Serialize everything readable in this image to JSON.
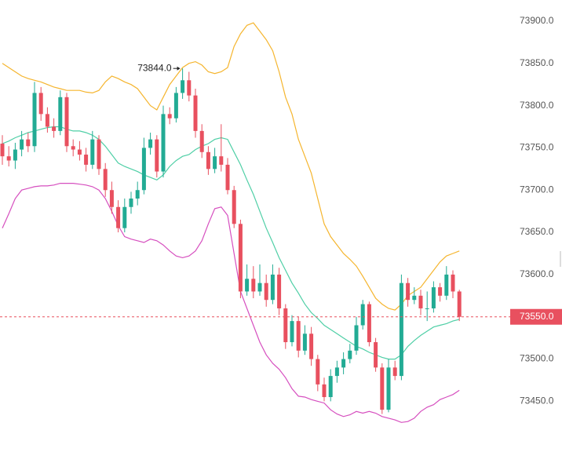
{
  "chart_data": {
    "type": "candlestick",
    "ylim": [
      73390,
      73925
    ],
    "yticks": [
      {
        "value": 73450,
        "label": "73450.0"
      },
      {
        "value": 73500,
        "label": "73500.0"
      },
      {
        "value": 73550,
        "label": "73550.0"
      },
      {
        "value": 73600,
        "label": "73600.0"
      },
      {
        "value": 73650,
        "label": "73650.0"
      },
      {
        "value": 73700,
        "label": "73700.0"
      },
      {
        "value": 73750,
        "label": "73750.0"
      },
      {
        "value": 73800,
        "label": "73800.0"
      },
      {
        "value": 73850,
        "label": "73850.0"
      },
      {
        "value": 73900,
        "label": "73900.0"
      }
    ],
    "up_color": "#22ab94",
    "down_color": "#e8505f",
    "open": [
      73755,
      73740,
      73735,
      73748,
      73760,
      73752,
      73815,
      73790,
      73775,
      73770,
      73810,
      73752,
      73748,
      73742,
      73730,
      73760,
      73725,
      73700,
      73680,
      73655,
      73680,
      73690,
      73700,
      73750,
      73760,
      73722,
      73790,
      73785,
      73815,
      73830,
      73812,
      73770,
      73745,
      73725,
      73740,
      73730,
      73700,
      73660,
      73580,
      73595,
      73580,
      73590,
      73570,
      73600,
      73560,
      73520,
      73545,
      73510,
      73530,
      73500,
      73470,
      73455,
      73480,
      73490,
      73500,
      73510,
      73540,
      73565,
      73520,
      73490,
      73440,
      73490,
      73480,
      73590,
      73570,
      73575,
      73560,
      73560,
      73585,
      73575,
      73600,
      73580
    ],
    "high": [
      73765,
      73752,
      73756,
      73770,
      73768,
      73828,
      73822,
      73798,
      73785,
      73818,
      73815,
      73760,
      73758,
      73750,
      73770,
      73765,
      73732,
      73710,
      73688,
      73690,
      73698,
      73710,
      73762,
      73768,
      73765,
      73800,
      73798,
      73822,
      73844,
      73840,
      73820,
      73778,
      73752,
      73750,
      73778,
      73738,
      73705,
      73665,
      73612,
      73610,
      73612,
      73600,
      73612,
      73608,
      73565,
      73552,
      73550,
      73540,
      73538,
      73505,
      73478,
      73488,
      73498,
      73508,
      73518,
      73550,
      73570,
      73568,
      73525,
      73495,
      73500,
      73498,
      73600,
      73596,
      73585,
      73582,
      73580,
      73592,
      73590,
      73610,
      73605,
      73582
    ],
    "low": [
      73730,
      73728,
      73725,
      73740,
      73745,
      73745,
      73782,
      73768,
      73762,
      73765,
      73745,
      73740,
      73735,
      73722,
      73725,
      73718,
      73692,
      73672,
      73650,
      73650,
      73672,
      73682,
      73695,
      73742,
      73715,
      73715,
      73778,
      73780,
      73808,
      73805,
      73762,
      73738,
      73718,
      73720,
      73722,
      73695,
      73655,
      73572,
      73575,
      73572,
      73575,
      73562,
      73565,
      73552,
      73512,
      73515,
      73502,
      73505,
      73492,
      73462,
      73450,
      73450,
      73472,
      73482,
      73495,
      73505,
      73535,
      73515,
      73485,
      73435,
      73437,
      73475,
      73475,
      73562,
      73565,
      73552,
      73545,
      73555,
      73568,
      73570,
      73572,
      73545
    ],
    "close": [
      73740,
      73735,
      73748,
      73760,
      73752,
      73815,
      73790,
      73775,
      73770,
      73810,
      73752,
      73748,
      73742,
      73730,
      73760,
      73725,
      73700,
      73680,
      73655,
      73680,
      73690,
      73700,
      73750,
      73760,
      73722,
      73790,
      73785,
      73815,
      73830,
      73812,
      73770,
      73745,
      73725,
      73740,
      73730,
      73700,
      73660,
      73580,
      73595,
      73580,
      73590,
      73570,
      73600,
      73560,
      73520,
      73545,
      73510,
      73530,
      73500,
      73470,
      73455,
      73480,
      73490,
      73500,
      73510,
      73540,
      73565,
      73520,
      73490,
      73440,
      73490,
      73480,
      73590,
      73570,
      73575,
      73560,
      73560,
      73585,
      73575,
      73600,
      73580,
      73550
    ],
    "overlays": [
      {
        "color": "#f5b52e",
        "values": [
          73850,
          73845,
          73840,
          73835,
          73832,
          73830,
          73828,
          73825,
          73822,
          73820,
          73818,
          73818,
          73818,
          73816,
          73815,
          73818,
          73828,
          73835,
          73832,
          73828,
          73825,
          73820,
          73810,
          73800,
          73795,
          73810,
          73825,
          73835,
          73845,
          73850,
          73852,
          73848,
          73840,
          73838,
          73840,
          73845,
          73870,
          73885,
          73895,
          73898,
          73888,
          73878,
          73865,
          73840,
          73810,
          73790,
          73760,
          73740,
          73720,
          73690,
          73660,
          73645,
          73635,
          73625,
          73618,
          73610,
          73598,
          73585,
          73572,
          73565,
          73560,
          73558,
          73565,
          73575,
          73580,
          73585,
          73595,
          73605,
          73615,
          73622,
          73625,
          73628
        ]
      },
      {
        "color": "#4fcfa6",
        "values": [
          73755,
          73758,
          73762,
          73765,
          73768,
          73770,
          73772,
          73774,
          73775,
          73775,
          73772,
          73770,
          73770,
          73768,
          73765,
          73760,
          73752,
          73742,
          73732,
          73728,
          73725,
          73722,
          73718,
          73715,
          73712,
          73718,
          73728,
          73735,
          73740,
          73742,
          73748,
          73752,
          73755,
          73760,
          73762,
          73760,
          73745,
          73730,
          73712,
          73695,
          73675,
          73655,
          73638,
          73620,
          73605,
          73590,
          73578,
          73565,
          73555,
          73548,
          73540,
          73535,
          73530,
          73525,
          73520,
          73515,
          73512,
          73508,
          73505,
          73502,
          73500,
          73500,
          73505,
          73515,
          73522,
          73528,
          73533,
          73538,
          73540,
          73542,
          73545,
          73547
        ]
      },
      {
        "color": "#d64fbf",
        "values": [
          73655,
          73672,
          73690,
          73700,
          73702,
          73704,
          73705,
          73705,
          73706,
          73708,
          73708,
          73708,
          73707,
          73706,
          73704,
          73700,
          73690,
          73675,
          73658,
          73645,
          73642,
          73640,
          73638,
          73642,
          73640,
          73635,
          73628,
          73622,
          73620,
          73622,
          73628,
          73640,
          73660,
          73678,
          73680,
          73670,
          73625,
          73580,
          73560,
          73540,
          73520,
          73505,
          73495,
          73488,
          73478,
          73465,
          73456,
          73455,
          73452,
          73450,
          73448,
          73440,
          73435,
          73432,
          73434,
          73438,
          73436,
          73438,
          73436,
          73432,
          73430,
          73428,
          73425,
          73426,
          73430,
          73438,
          73443,
          73446,
          73452,
          73455,
          73458,
          73463
        ]
      }
    ],
    "annotation": {
      "value": 73844,
      "label": "73844.0"
    },
    "last_price": {
      "value": 73550,
      "label": "73550.0",
      "color": "#e8505f"
    }
  }
}
